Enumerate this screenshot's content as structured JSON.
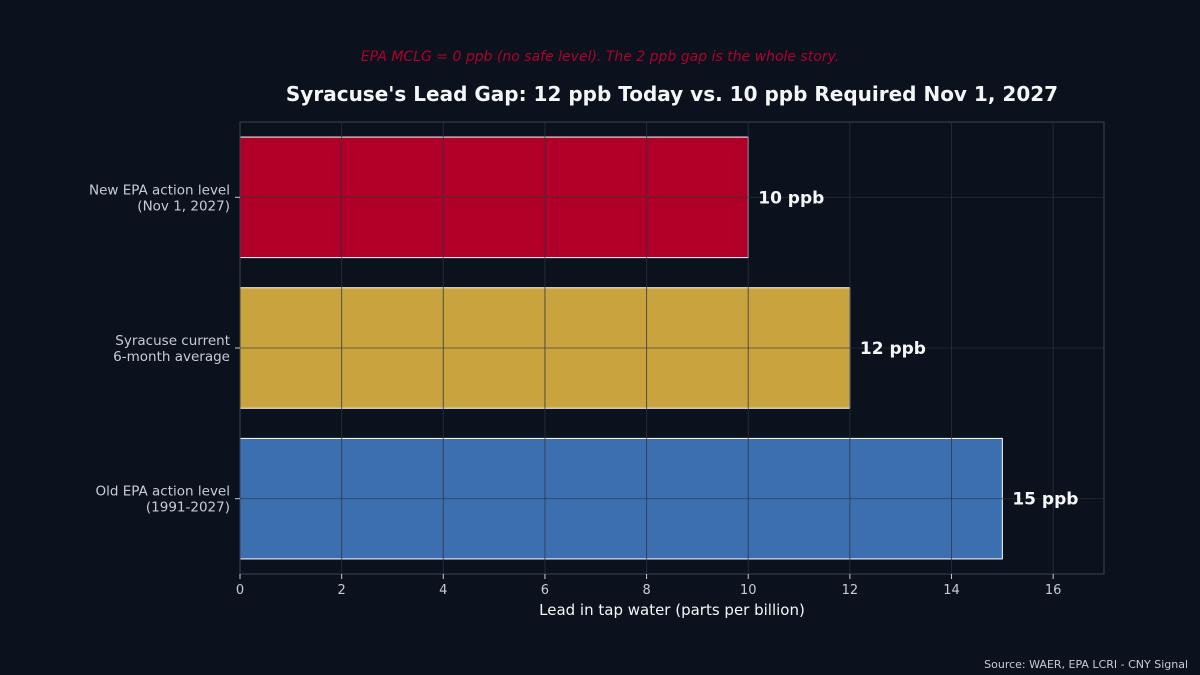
{
  "colors": {
    "background": "#0b121d",
    "text": "#f4f6f8",
    "muted_text": "#c7ccd4",
    "subtitle": "#b0002a",
    "grid": "#2a3340",
    "frame": "#3a4452",
    "bar_edge": "#ffffff"
  },
  "chart_data": {
    "type": "bar",
    "orientation": "horizontal",
    "title": "Syracuse's Lead Gap: 12 ppb Today vs. 10 ppb Required Nov 1, 2027",
    "subtitle": "EPA MCLG = 0 ppb (no safe level). The 2 ppb gap is the whole story.",
    "xlabel": "Lead in tap water (parts per billion)",
    "ylabel": "",
    "xlim": [
      0,
      17
    ],
    "xticks": [
      0,
      2,
      4,
      6,
      8,
      10,
      12,
      14,
      16
    ],
    "grid": true,
    "source": "Source: WAER, EPA LCRI - CNY Signal",
    "bars": [
      {
        "label_lines": [
          "New EPA action level",
          "(Nov 1, 2027)"
        ],
        "value": 10,
        "value_label": "10 ppb",
        "color": "#b0002a"
      },
      {
        "label_lines": [
          "Syracuse current",
          "6-month average"
        ],
        "value": 12,
        "value_label": "12 ppb",
        "color": "#c9a33e"
      },
      {
        "label_lines": [
          "Old EPA action level",
          "(1991-2027)"
        ],
        "value": 15,
        "value_label": "15 ppb",
        "color": "#3c6fb0"
      }
    ]
  }
}
